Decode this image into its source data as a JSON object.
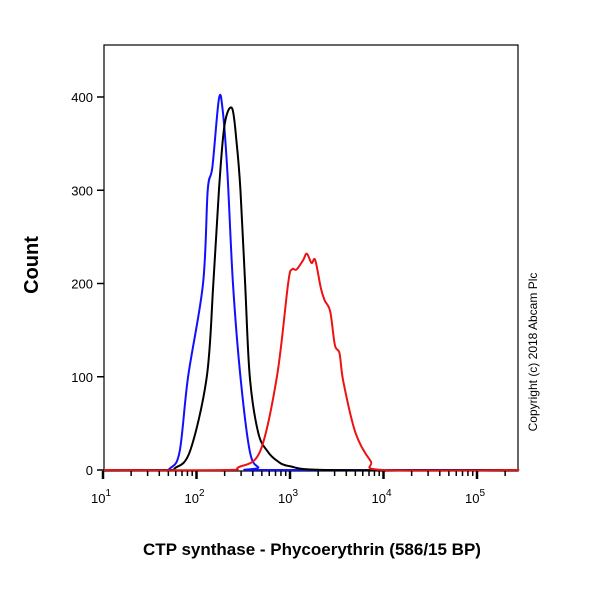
{
  "chart_data": {
    "type": "line",
    "title": "",
    "xlabel": "CTP synthase - Phycoerythrin (586/15 BP)",
    "ylabel": "Count",
    "xscale": "log",
    "xlim_log10": [
      1,
      5.45
    ],
    "ylim": [
      0,
      440
    ],
    "x_ticks": [
      {
        "base": "10",
        "exp": "1",
        "v": 1
      },
      {
        "base": "10",
        "exp": "2",
        "v": 2
      },
      {
        "base": "10",
        "exp": "3",
        "v": 3
      },
      {
        "base": "10",
        "exp": "4",
        "v": 4
      },
      {
        "base": "10",
        "exp": "5",
        "v": 5
      }
    ],
    "y_ticks": [
      "0",
      "100",
      "200",
      "300",
      "400"
    ],
    "annotation": "Copyright (c) 2018 Abcam Plc",
    "grid": false,
    "series": [
      {
        "name": "blue",
        "color": "#1010ff",
        "points_log10x_count": [
          [
            1.0,
            0
          ],
          [
            1.6,
            0
          ],
          [
            1.72,
            2
          ],
          [
            1.82,
            20
          ],
          [
            1.91,
            100
          ],
          [
            2.07,
            200
          ],
          [
            2.12,
            300
          ],
          [
            2.17,
            325
          ],
          [
            2.24,
            398
          ],
          [
            2.28,
            386
          ],
          [
            2.33,
            320
          ],
          [
            2.39,
            200
          ],
          [
            2.47,
            100
          ],
          [
            2.57,
            20
          ],
          [
            2.66,
            3
          ],
          [
            2.73,
            0
          ],
          [
            5.45,
            0
          ]
        ]
      },
      {
        "name": "black",
        "color": "#000000",
        "points_log10x_count": [
          [
            1.0,
            0
          ],
          [
            1.7,
            0
          ],
          [
            1.77,
            2
          ],
          [
            1.93,
            20
          ],
          [
            2.11,
            100
          ],
          [
            2.18,
            200
          ],
          [
            2.24,
            300
          ],
          [
            2.3,
            370
          ],
          [
            2.38,
            388
          ],
          [
            2.43,
            350
          ],
          [
            2.47,
            300
          ],
          [
            2.52,
            200
          ],
          [
            2.57,
            100
          ],
          [
            2.66,
            40
          ],
          [
            2.76,
            20
          ],
          [
            2.86,
            10
          ],
          [
            3.0,
            4
          ],
          [
            3.43,
            0
          ],
          [
            5.45,
            0
          ]
        ]
      },
      {
        "name": "red",
        "color": "#ee1111",
        "points_log10x_count": [
          [
            1.0,
            0
          ],
          [
            2.3,
            0
          ],
          [
            2.45,
            3
          ],
          [
            2.68,
            20
          ],
          [
            2.86,
            100
          ],
          [
            2.98,
            200
          ],
          [
            3.02,
            215
          ],
          [
            3.07,
            215
          ],
          [
            3.14,
            225
          ],
          [
            3.18,
            232
          ],
          [
            3.23,
            222
          ],
          [
            3.27,
            225
          ],
          [
            3.33,
            195
          ],
          [
            3.37,
            182
          ],
          [
            3.43,
            170
          ],
          [
            3.48,
            134
          ],
          [
            3.53,
            125
          ],
          [
            3.57,
            95
          ],
          [
            3.7,
            40
          ],
          [
            3.86,
            10
          ],
          [
            4.0,
            0
          ],
          [
            5.45,
            0
          ]
        ]
      }
    ]
  }
}
